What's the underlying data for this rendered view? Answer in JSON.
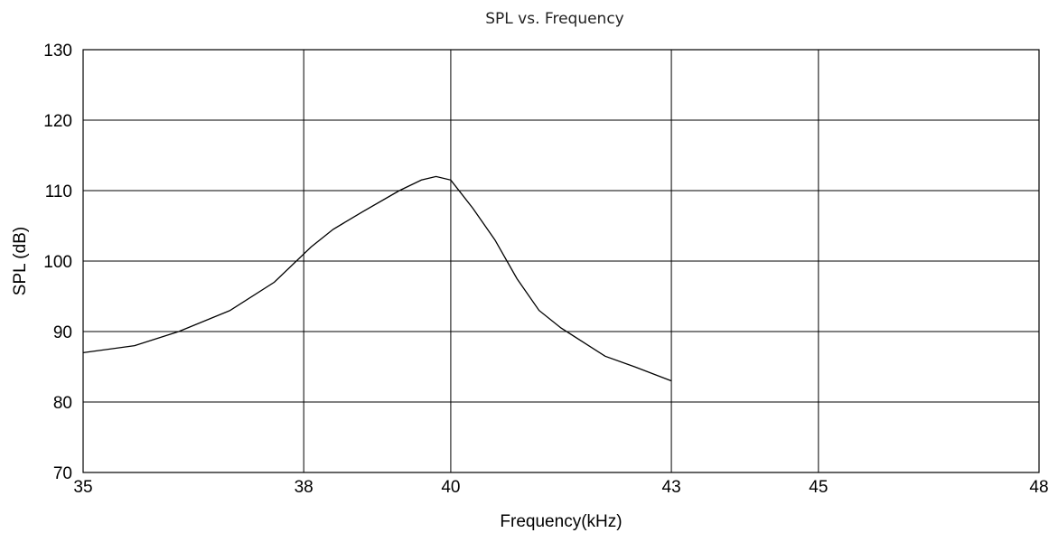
{
  "chart_data": {
    "type": "line",
    "title": "SPL vs. Frequency",
    "xlabel": "Frequency(kHz)",
    "ylabel": "SPL (dB)",
    "xlim": [
      35,
      48
    ],
    "ylim": [
      70,
      130
    ],
    "x_tick_labels": [
      "35",
      "38",
      "40",
      "43",
      "45",
      "48"
    ],
    "y_tick_labels": [
      "70",
      "80",
      "90",
      "100",
      "110",
      "120",
      "130"
    ],
    "grid": true,
    "series": [
      {
        "x": [
          35.0,
          35.7,
          36.3,
          37.0,
          37.6,
          38.1,
          38.4,
          38.8,
          39.3,
          39.6,
          39.8,
          40.0,
          40.3,
          40.6,
          40.9,
          41.2,
          41.5,
          41.8,
          42.1,
          42.5,
          43.0
        ],
        "values": [
          87,
          88,
          90,
          93,
          97,
          102,
          104.5,
          107,
          110,
          111.5,
          112,
          111.5,
          107.5,
          103,
          97.5,
          93,
          90.5,
          88.5,
          86.5,
          85,
          83
        ]
      }
    ]
  }
}
